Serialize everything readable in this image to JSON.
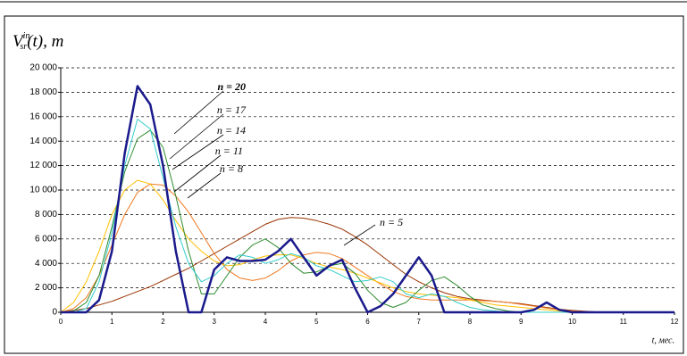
{
  "chart_data": {
    "type": "line",
    "ylabel": {
      "main": "V",
      "sub": "sr",
      "sup": "in",
      "rest": "(t), m"
    },
    "xlabel": "t, мес.",
    "x": [
      0,
      0.25,
      0.5,
      0.75,
      1,
      1.25,
      1.5,
      1.75,
      2,
      2.25,
      2.5,
      2.75,
      3,
      3.25,
      3.5,
      3.75,
      4,
      4.25,
      4.5,
      4.75,
      5,
      5.25,
      5.5,
      5.75,
      6,
      6.25,
      6.5,
      6.75,
      7,
      7.25,
      7.5,
      7.75,
      8,
      8.25,
      8.5,
      8.75,
      9,
      9.25,
      9.5,
      9.75,
      10,
      10.25,
      10.5,
      10.75,
      11,
      11.25,
      11.5,
      11.75,
      12
    ],
    "series": [
      {
        "name": "n = 5",
        "color": "#993300",
        "width": 1,
        "values": [
          0,
          150,
          300,
          600,
          900,
          1300,
          1700,
          2100,
          2600,
          3100,
          3600,
          4200,
          4800,
          5400,
          6000,
          6600,
          7200,
          7600,
          7750,
          7700,
          7500,
          7200,
          6800,
          6200,
          5500,
          4700,
          3900,
          3100,
          2500,
          2000,
          1600,
          1300,
          1100,
          1000,
          900,
          800,
          700,
          550,
          400,
          250,
          150,
          80,
          30,
          0,
          0,
          0,
          0,
          0,
          0
        ]
      },
      {
        "name": "n = 8",
        "color": "#f07820",
        "width": 1,
        "values": [
          0,
          300,
          1200,
          3000,
          5500,
          8000,
          9800,
          10500,
          10400,
          9500,
          8200,
          6500,
          4800,
          3500,
          2800,
          2600,
          2800,
          3400,
          4200,
          4700,
          4900,
          4800,
          4400,
          3700,
          3000,
          2300,
          1700,
          1300,
          1100,
          1000,
          1000,
          1000,
          1000,
          950,
          900,
          800,
          650,
          500,
          350,
          200,
          100,
          0,
          0,
          0,
          0,
          0,
          0,
          0,
          0
        ]
      },
      {
        "name": "n = 11",
        "color": "#ffc000",
        "width": 1,
        "values": [
          0,
          800,
          2500,
          5000,
          8000,
          10000,
          10800,
          10500,
          9200,
          7500,
          6000,
          5000,
          4200,
          3800,
          3900,
          4300,
          4600,
          4700,
          4700,
          4400,
          4000,
          3700,
          3500,
          3200,
          2800,
          2400,
          2000,
          1700,
          1500,
          1400,
          1300,
          1200,
          1000,
          800,
          600,
          500,
          400,
          300,
          200,
          100,
          50,
          0,
          0,
          0,
          0,
          0,
          0,
          0,
          0
        ]
      },
      {
        "name": "n = 14",
        "color": "#2e8b2e",
        "width": 1,
        "values": [
          0,
          100,
          800,
          3000,
          7000,
          11500,
          14200,
          14900,
          13500,
          9500,
          5000,
          1500,
          1500,
          3000,
          4500,
          5500,
          6000,
          5300,
          4000,
          3200,
          3300,
          3800,
          4000,
          3200,
          1800,
          800,
          400,
          800,
          1800,
          2600,
          2900,
          2200,
          1300,
          600,
          300,
          100,
          0,
          0,
          0,
          0,
          0,
          0,
          0,
          0,
          0,
          0,
          0,
          0,
          0
        ]
      },
      {
        "name": "n = 17",
        "color": "#33cccc",
        "width": 1,
        "values": [
          0,
          0,
          300,
          2500,
          6500,
          12000,
          15800,
          15000,
          11000,
          7000,
          4000,
          2500,
          3000,
          4000,
          4700,
          4500,
          4000,
          4300,
          4800,
          4500,
          3800,
          3500,
          3000,
          2500,
          2600,
          2900,
          2500,
          1500,
          1200,
          1500,
          1300,
          800,
          400,
          200,
          100,
          0,
          0,
          0,
          0,
          0,
          0,
          0,
          0,
          0,
          0,
          0,
          0,
          0,
          0
        ]
      },
      {
        "name": "n = 20",
        "color": "#1a1a8c",
        "width": 2.5,
        "values": [
          0,
          0,
          0,
          1000,
          5000,
          13000,
          18500,
          17000,
          12000,
          5000,
          0,
          0,
          3500,
          4500,
          4200,
          4200,
          4300,
          5000,
          6000,
          4500,
          3000,
          3800,
          4300,
          2000,
          0,
          500,
          1500,
          3000,
          4500,
          3000,
          0,
          0,
          0,
          0,
          0,
          0,
          0,
          200,
          800,
          200,
          0,
          0,
          0,
          0,
          0,
          0,
          0,
          0,
          0
        ]
      }
    ],
    "xlim": [
      0,
      12
    ],
    "xticks": [
      0,
      1,
      2,
      3,
      4,
      5,
      6,
      7,
      8,
      9,
      10,
      11,
      12
    ],
    "ylim": [
      0,
      20000
    ],
    "yticks": [
      0,
      {
        "value": 2000,
        "label": "2 000"
      },
      {
        "value": 4000,
        "label": "4 000"
      },
      {
        "value": 6000,
        "label": "6 000"
      },
      {
        "value": 8000,
        "label": "8 000"
      },
      {
        "value": 10000,
        "label": "10 000"
      },
      {
        "value": 12000,
        "label": "12 000"
      },
      {
        "value": 14000,
        "label": "14 000"
      },
      {
        "value": 16000,
        "label": "16 000"
      },
      {
        "value": 18000,
        "label": "18 000"
      },
      {
        "value": 20000,
        "label": "20 000"
      }
    ],
    "grid": true
  }
}
